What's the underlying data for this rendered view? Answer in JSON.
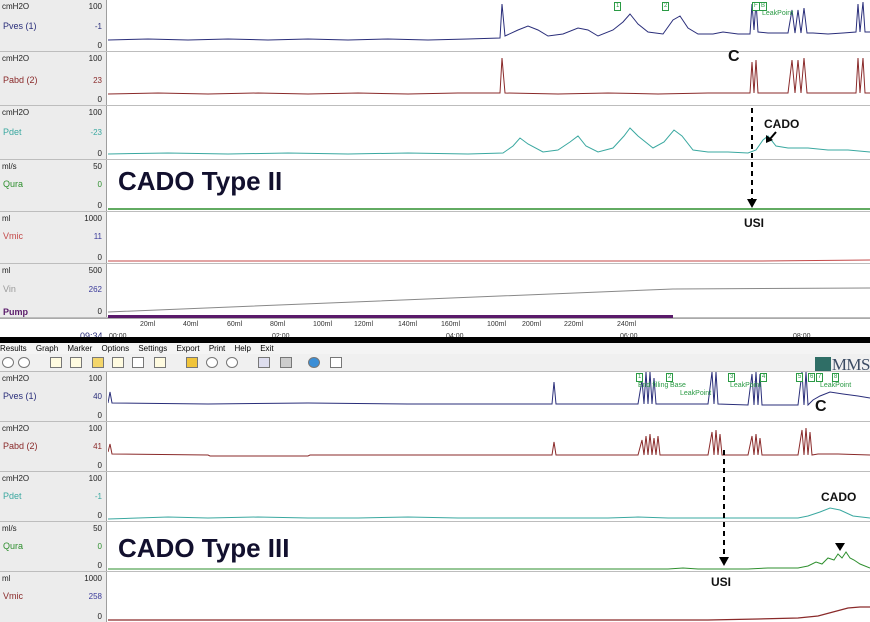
{
  "colors": {
    "pves": "#2a2e7a",
    "pabd": "#8a2a2a",
    "pdet": "#3aa8a0",
    "qura": "#2e8f2e",
    "vmic": "#c44a4a",
    "vin": "#888888",
    "pump": "#5a1a6a"
  },
  "top": {
    "tracks": [
      {
        "unit": "cmH2O",
        "max": "100",
        "min": "0",
        "name": "Pves (1)",
        "value": "-1"
      },
      {
        "unit": "cmH2O",
        "max": "100",
        "min": "0",
        "name": "Pabd (2)",
        "value": "23"
      },
      {
        "unit": "cmH2O",
        "max": "100",
        "min": "0",
        "name": "Pdet",
        "value": "-23"
      },
      {
        "unit": "ml/s",
        "max": "50",
        "min": "0",
        "name": "Qura",
        "value": "0"
      },
      {
        "unit": "ml",
        "max": "1000",
        "min": "0",
        "name": "Vmic",
        "value": "11"
      },
      {
        "unit": "ml",
        "max": "500",
        "min": "0",
        "name": "Vin",
        "value": "262"
      }
    ],
    "pump_label": "Pump",
    "time_value": "09:34",
    "axis_start": "00:00",
    "volume_ticks": [
      "20ml",
      "40ml",
      "60ml",
      "80ml",
      "100ml",
      "120ml",
      "140ml",
      "160ml",
      "100ml",
      "200ml",
      "220ml",
      "240ml"
    ],
    "time_ticks": [
      "02:00",
      "04:00",
      "06:00",
      "08:00"
    ],
    "event_marks": [
      "1",
      "2",
      "F",
      "B"
    ],
    "leakpoint": "LeakPoint",
    "title": "CADO Type II",
    "ann_c": "C",
    "ann_cado": "CADO",
    "ann_usi": "USI"
  },
  "menu": [
    "Results",
    "Graph",
    "Marker",
    "Options",
    "Settings",
    "Export",
    "Print",
    "Help",
    "Exit"
  ],
  "logo": "MMS",
  "bottom": {
    "tracks": [
      {
        "unit": "cmH2O",
        "max": "100",
        "min": "0",
        "name": "Pves (1)",
        "value": "40"
      },
      {
        "unit": "cmH2O",
        "max": "100",
        "min": "0",
        "name": "Pabd (2)",
        "value": "41"
      },
      {
        "unit": "cmH2O",
        "max": "100",
        "min": "0",
        "name": "Pdet",
        "value": "-1"
      },
      {
        "unit": "ml/s",
        "max": "50",
        "min": "0",
        "name": "Qura",
        "value": "0"
      },
      {
        "unit": "ml",
        "max": "1000",
        "min": "0",
        "name": "Vmic",
        "value": "258"
      }
    ],
    "event_marks": [
      "1",
      "2",
      "3",
      "4",
      "5",
      "6",
      "7",
      "8"
    ],
    "event_labels": [
      "End filling",
      "Base",
      "LeakPoint",
      "LeakPoint",
      "LeakPoint"
    ],
    "title": "CADO Type III",
    "ann_c": "C",
    "ann_cado": "CADO",
    "ann_usi": "USI"
  },
  "chart_data": [
    {
      "type": "line",
      "title": "CADO Type II",
      "series": [
        {
          "name": "Pves (1)"
        },
        {
          "name": "Pabd (2)"
        },
        {
          "name": "Pdet"
        },
        {
          "name": "Qura"
        },
        {
          "name": "Vmic"
        },
        {
          "name": "Vin"
        }
      ]
    },
    {
      "type": "line",
      "title": "CADO Type III",
      "series": [
        {
          "name": "Pves (1)"
        },
        {
          "name": "Pabd (2)"
        },
        {
          "name": "Pdet"
        },
        {
          "name": "Qura"
        },
        {
          "name": "Vmic"
        }
      ]
    }
  ]
}
